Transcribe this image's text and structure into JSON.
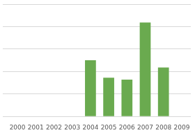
{
  "chart_data": {
    "type": "bar",
    "categories": [
      "2000",
      "2001",
      "2002",
      "2003",
      "2004",
      "2005",
      "2006",
      "2007",
      "2008",
      "2009"
    ],
    "values": [
      0,
      0,
      0,
      0,
      55,
      38,
      36,
      92,
      48,
      0
    ],
    "color": "#6aaa4f",
    "ylim": [
      0,
      110
    ],
    "yticks": [
      0,
      22,
      44,
      66,
      88,
      110
    ],
    "grid": true,
    "tick_labels": "x"
  }
}
